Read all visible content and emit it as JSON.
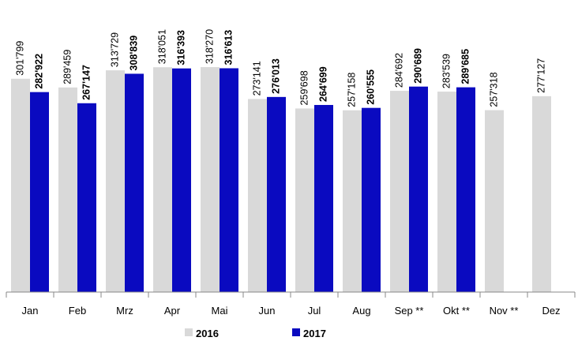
{
  "chart_data": {
    "type": "bar",
    "categories": [
      "Jan",
      "Feb",
      "Mrz",
      "Apr",
      "Mai",
      "Jun",
      "Jul",
      "Aug",
      "Sep **",
      "Okt **",
      "Nov **",
      "Dez"
    ],
    "series": [
      {
        "name": "2016",
        "color": "#d9d9d9",
        "values": [
          301799,
          289459,
          313729,
          318051,
          318270,
          273141,
          259698,
          257158,
          284692,
          283539,
          257318,
          277127
        ],
        "value_labels": [
          "301'799",
          "289'459",
          "313'729",
          "318'051",
          "318'270",
          "273'141",
          "259'698",
          "257'158",
          "284'692",
          "283'539",
          "257'318",
          "277'127"
        ]
      },
      {
        "name": "2017",
        "color": "#0a0ac0",
        "values": [
          282922,
          267147,
          308839,
          316393,
          316613,
          276013,
          264699,
          260555,
          290689,
          289685,
          null,
          null
        ],
        "value_labels": [
          "282'922",
          "267'147",
          "308'839",
          "316'393",
          "316'613",
          "276'013",
          "264'699",
          "260'555",
          "290'689",
          "289'685",
          null,
          null
        ]
      }
    ]
  }
}
